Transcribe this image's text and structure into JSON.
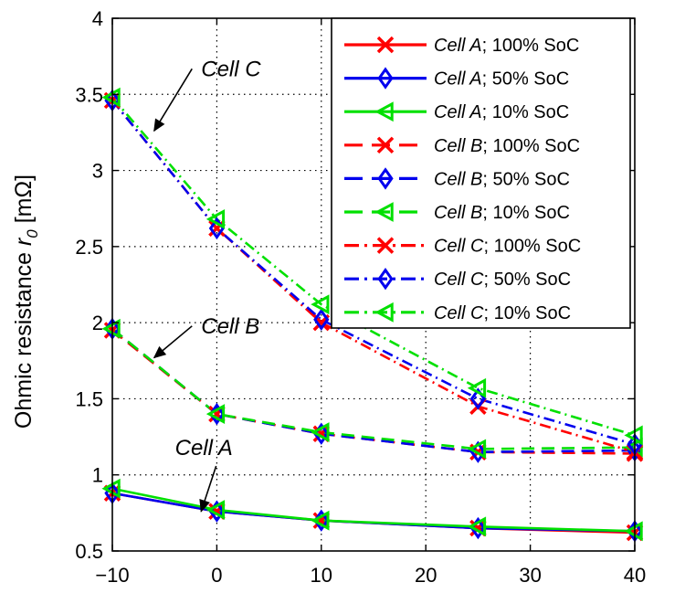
{
  "chart_data": {
    "type": "line",
    "ylabel_main": "Ohmic resistance ",
    "ylabel_sym": "r",
    "ylabel_sub": "0",
    "ylabel_unit": " [mΩ]",
    "xlim": [
      -10,
      40
    ],
    "ylim": [
      0.5,
      4
    ],
    "x_ticks": [
      "−10",
      "0",
      "10",
      "20",
      "30",
      "40"
    ],
    "y_ticks": [
      "0.5",
      "1",
      "1.5",
      "2",
      "2.5",
      "3",
      "3.5",
      "4"
    ],
    "grid": true,
    "legend_position": "top-right",
    "x": [
      -10,
      0,
      10,
      25,
      40
    ],
    "series": [
      {
        "cell": "Cell A",
        "soc": "; 100% SoC",
        "color": "#ff0000",
        "style": "solid",
        "marker": "x",
        "values": [
          0.88,
          0.76,
          0.7,
          0.65,
          0.62
        ]
      },
      {
        "cell": "Cell A",
        "soc": "; 50% SoC",
        "color": "#0000ee",
        "style": "solid",
        "marker": "diamond",
        "values": [
          0.88,
          0.76,
          0.7,
          0.65,
          0.63
        ]
      },
      {
        "cell": "Cell A",
        "soc": "; 10% SoC",
        "color": "#00e000",
        "style": "solid",
        "marker": "triangle-left",
        "values": [
          0.91,
          0.77,
          0.7,
          0.66,
          0.63
        ]
      },
      {
        "cell": "Cell B",
        "soc": "; 100% SoC",
        "color": "#ff0000",
        "style": "dashed",
        "marker": "x",
        "values": [
          1.95,
          1.4,
          1.27,
          1.15,
          1.14
        ]
      },
      {
        "cell": "Cell B",
        "soc": "; 50% SoC",
        "color": "#0000ee",
        "style": "dashed",
        "marker": "diamond",
        "values": [
          1.96,
          1.4,
          1.27,
          1.15,
          1.16
        ]
      },
      {
        "cell": "Cell B",
        "soc": "; 10% SoC",
        "color": "#00e000",
        "style": "dashed",
        "marker": "triangle-left",
        "values": [
          1.96,
          1.4,
          1.28,
          1.17,
          1.18
        ]
      },
      {
        "cell": "Cell C",
        "soc": "; 100% SoC",
        "color": "#ff0000",
        "style": "dashdot",
        "marker": "x",
        "values": [
          3.46,
          2.62,
          2.0,
          1.45,
          1.15
        ]
      },
      {
        "cell": "Cell C",
        "soc": "; 50% SoC",
        "color": "#0000ee",
        "style": "dashdot",
        "marker": "diamond",
        "values": [
          3.46,
          2.62,
          2.02,
          1.5,
          1.2
        ]
      },
      {
        "cell": "Cell C",
        "soc": "; 10% SoC",
        "color": "#00e000",
        "style": "dashdot",
        "marker": "triangle-left",
        "values": [
          3.48,
          2.68,
          2.12,
          1.57,
          1.26
        ]
      }
    ],
    "annotations": [
      {
        "text": "Cell C",
        "x": -6,
        "y": 3.26,
        "text_x": -1.5,
        "text_y": 3.62
      },
      {
        "text": "Cell B",
        "x": -6,
        "y": 1.77,
        "text_x": -1.5,
        "text_y": 1.93
      },
      {
        "text": "Cell A",
        "x": -1.5,
        "y": 0.76,
        "text_x": -4,
        "text_y": 1.13
      }
    ]
  }
}
